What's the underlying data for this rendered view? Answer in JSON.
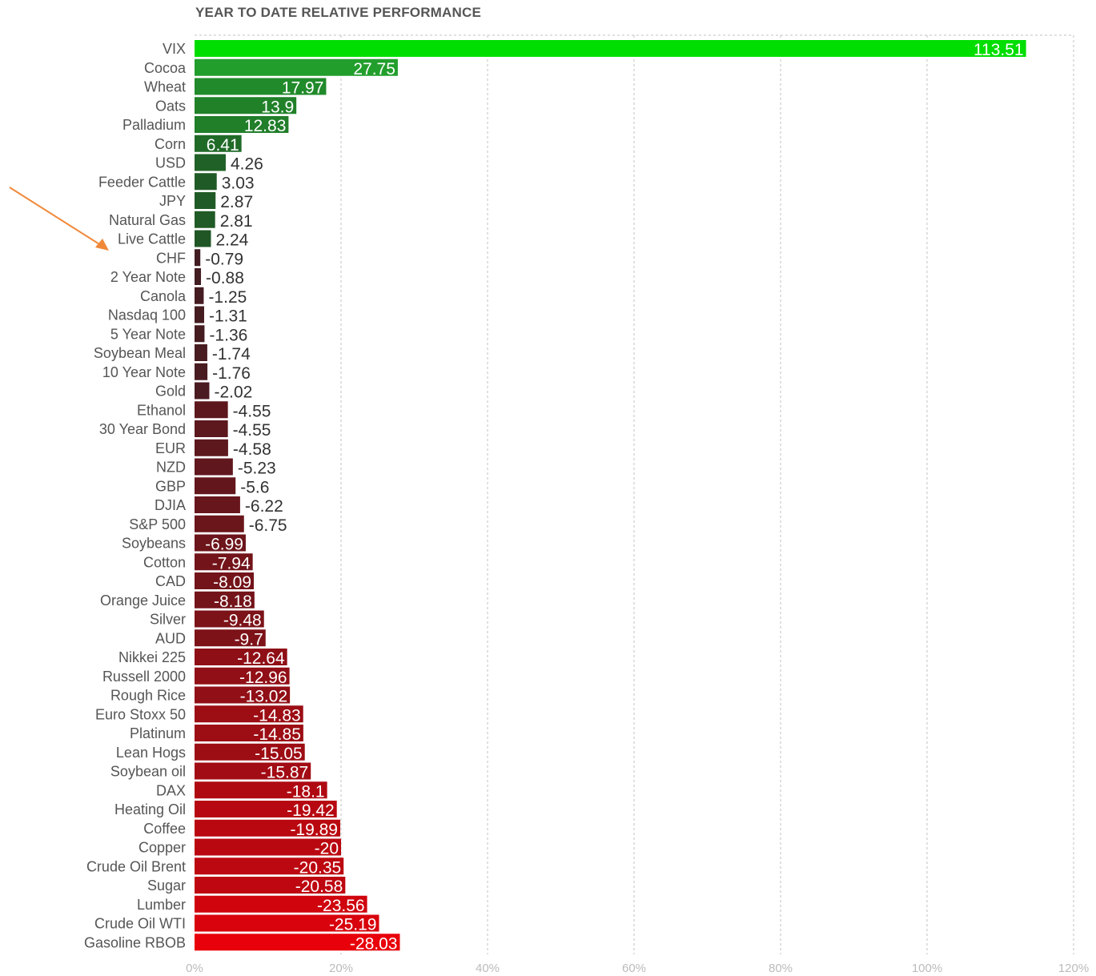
{
  "chart_data": {
    "type": "bar",
    "orientation": "horizontal",
    "title": "YEAR TO DATE RELATIVE PERFORMANCE",
    "xlabel": "",
    "ylabel": "",
    "xlim": [
      0,
      120
    ],
    "x_ticks": [
      "0%",
      "20%",
      "40%",
      "60%",
      "80%",
      "100%",
      "120%"
    ],
    "grid": "vertical dotted",
    "legend": "none",
    "bars_drawn_by_absolute_value": true,
    "colors": {
      "positive_high": "#00dd00",
      "positive_low": "#1f3a24",
      "negative_low": "#3a1e22",
      "negative_high": "#e8000a"
    },
    "annotation": "orange arrow pointing at CHF",
    "categories": [
      "VIX",
      "Cocoa",
      "Wheat",
      "Oats",
      "Palladium",
      "Corn",
      "USD",
      "Feeder Cattle",
      "JPY",
      "Natural Gas",
      "Live Cattle",
      "CHF",
      "2 Year Note",
      "Canola",
      "Nasdaq 100",
      "5 Year Note",
      "Soybean Meal",
      "10 Year Note",
      "Gold",
      "Ethanol",
      "30 Year Bond",
      "EUR",
      "NZD",
      "GBP",
      "DJIA",
      "S&P 500",
      "Soybeans",
      "Cotton",
      "CAD",
      "Orange Juice",
      "Silver",
      "AUD",
      "Nikkei 225",
      "Russell 2000",
      "Rough Rice",
      "Euro Stoxx 50",
      "Platinum",
      "Lean Hogs",
      "Soybean oil",
      "DAX",
      "Heating Oil",
      "Coffee",
      "Copper",
      "Crude Oil Brent",
      "Sugar",
      "Lumber",
      "Crude Oil WTI",
      "Gasoline RBOB"
    ],
    "values": [
      113.51,
      27.75,
      17.97,
      13.9,
      12.83,
      6.41,
      4.26,
      3.03,
      2.87,
      2.81,
      2.24,
      -0.79,
      -0.88,
      -1.25,
      -1.31,
      -1.36,
      -1.74,
      -1.76,
      -2.02,
      -4.55,
      -4.55,
      -4.58,
      -5.23,
      -5.6,
      -6.22,
      -6.75,
      -6.99,
      -7.94,
      -8.09,
      -8.18,
      -9.48,
      -9.7,
      -12.64,
      -12.96,
      -13.02,
      -14.83,
      -14.85,
      -15.05,
      -15.87,
      -18.1,
      -19.42,
      -19.89,
      -20,
      -20.35,
      -20.58,
      -23.56,
      -25.19,
      -28.03
    ],
    "value_labels": [
      "113.51",
      "27.75",
      "17.97",
      "13.9",
      "12.83",
      "6.41",
      "4.26",
      "3.03",
      "2.87",
      "2.81",
      "2.24",
      "-0.79",
      "-0.88",
      "-1.25",
      "-1.31",
      "-1.36",
      "-1.74",
      "-1.76",
      "-2.02",
      "-4.55",
      "-4.55",
      "-4.58",
      "-5.23",
      "-5.6",
      "-6.22",
      "-6.75",
      "-6.99",
      "-7.94",
      "-8.09",
      "-8.18",
      "-9.48",
      "-9.7",
      "-12.64",
      "-12.96",
      "-13.02",
      "-14.83",
      "-14.85",
      "-15.05",
      "-15.87",
      "-18.1",
      "-19.42",
      "-19.89",
      "-20",
      "-20.35",
      "-20.58",
      "-23.56",
      "-25.19",
      "-28.03"
    ]
  }
}
